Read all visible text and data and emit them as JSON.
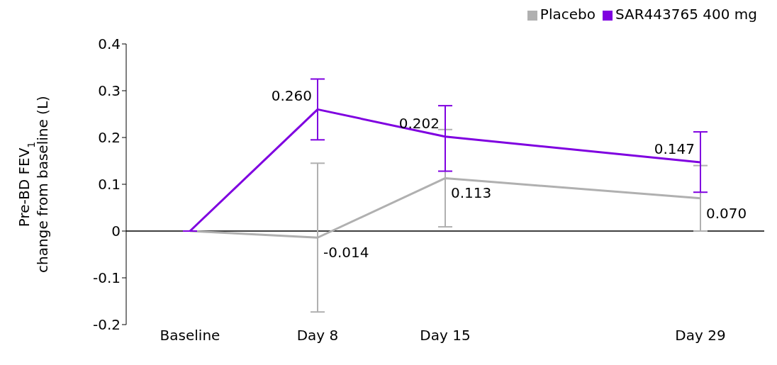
{
  "chart_data": {
    "type": "line",
    "ylabel": "Pre-BD FEV$_{1}$\nchange from baseline (L)",
    "categories": [
      "Baseline",
      "Day 8",
      "Day 15",
      null,
      "Day 29"
    ],
    "ylim": [
      -0.2,
      0.4
    ],
    "yticks": [
      -0.2,
      -0.1,
      0,
      0.1,
      0.2,
      0.3,
      0.4
    ],
    "series": [
      {
        "name": "Placebo",
        "color": "#b0b0b0",
        "values": [
          0,
          -0.014,
          0.113,
          null,
          0.07
        ],
        "errors": [
          null,
          [
            -0.173,
            0.145
          ],
          [
            0.009,
            0.217
          ],
          null,
          [
            0.0,
            0.14
          ]
        ],
        "value_labels": [
          null,
          "-0.014",
          "0.113",
          null,
          "0.070"
        ]
      },
      {
        "name": "SAR443765 400 mg",
        "color": "#7f00e0",
        "values": [
          0,
          0.26,
          0.202,
          null,
          0.147
        ],
        "errors": [
          null,
          [
            0.195,
            0.325
          ],
          [
            0.128,
            0.268
          ],
          null,
          [
            0.083,
            0.212
          ]
        ],
        "value_labels": [
          null,
          "0.260",
          "0.202",
          null,
          "0.147"
        ]
      }
    ],
    "ref_lines": [
      {
        "axis": "y",
        "value": 0,
        "color": "#000000"
      }
    ],
    "grid": false,
    "legend": "top right",
    "marker": "none",
    "line_style": "solid"
  }
}
